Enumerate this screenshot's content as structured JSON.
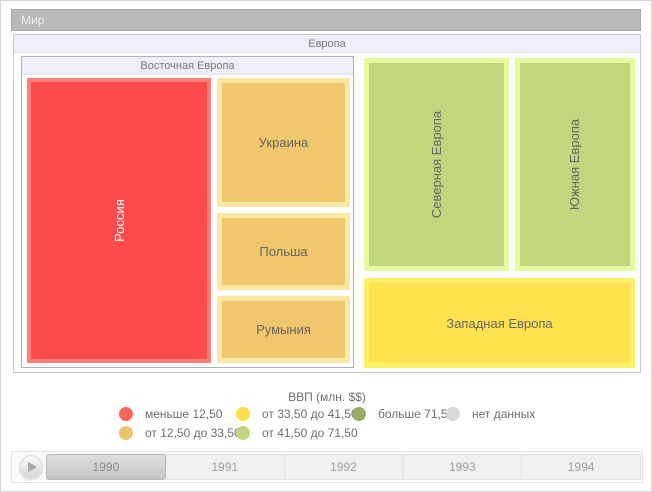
{
  "window": {
    "title": "Мир"
  },
  "treemap": {
    "root_label": "Европа",
    "eastern": {
      "label": "Восточная Европа",
      "children": [
        {
          "name": "Россия",
          "fill": "#FF4B4B",
          "border": "#FF7E78",
          "text": "#FFFFFF",
          "bin": "меньше 12,50"
        },
        {
          "name": "Украина",
          "fill": "#F0C76C",
          "border": "#FAE8A4",
          "text": "#666666",
          "bin": "от 12,50 до 33,50"
        },
        {
          "name": "Польша",
          "fill": "#F0C76C",
          "border": "#FAE8A4",
          "text": "#666666",
          "bin": "от 12,50 до 33,50"
        },
        {
          "name": "Румыния",
          "fill": "#F0C76C",
          "border": "#FAE8A4",
          "text": "#666666",
          "bin": "от 12,50 до 33,50"
        }
      ]
    },
    "regions": [
      {
        "name": "Северная Европа",
        "fill": "#C2D77D",
        "border": "#E6FA9E",
        "text": "#666666",
        "bin": "от 41,50 до 71,50"
      },
      {
        "name": "Южная Европа",
        "fill": "#C2D77D",
        "border": "#E6FA9E",
        "text": "#666666",
        "bin": "от 41,50 до 71,50"
      },
      {
        "name": "Западная Европа",
        "fill": "#FFE24D",
        "border": "#FBF167",
        "text": "#666666",
        "bin": "от 33,50 до 41,50"
      }
    ]
  },
  "legend": {
    "title": "ВВП (млн. $$)",
    "items": [
      {
        "label": "меньше 12,50",
        "color": "#F9675C"
      },
      {
        "label": "от 12,50 до 33,50",
        "color": "#EFC46F"
      },
      {
        "label": "от 33,50 до 41,50",
        "color": "#FCE14B"
      },
      {
        "label": "от 41,50 до 71,50",
        "color": "#C0D57E"
      },
      {
        "label": "больше 71,50",
        "color": "#9AAE63"
      },
      {
        "label": "нет данных",
        "color": "#D8D8D8"
      }
    ]
  },
  "timeline": {
    "years": [
      "1990",
      "1991",
      "1992",
      "1993",
      "1994"
    ],
    "selected": "1990"
  },
  "chart_data": {
    "type": "treemap",
    "title": "Мир",
    "group": "Европа",
    "measure": "ВВП (млн. $$)",
    "year_shown": "1990",
    "years": [
      "1990",
      "1991",
      "1992",
      "1993",
      "1994"
    ],
    "bins": [
      {
        "label": "меньше 12,50",
        "color": "#F9675C"
      },
      {
        "label": "от 12,50 до 33,50",
        "color": "#EFC46F"
      },
      {
        "label": "от 33,50 до 41,50",
        "color": "#FCE14B"
      },
      {
        "label": "от 41,50 до 71,50",
        "color": "#C0D57E"
      },
      {
        "label": "больше 71,50",
        "color": "#9AAE63"
      },
      {
        "label": "нет данных",
        "color": "#D8D8D8"
      }
    ],
    "nodes": [
      {
        "path": "Европа / Восточная Европа / Россия",
        "bin": "меньше 12,50",
        "area_share_pct": 31
      },
      {
        "path": "Европа / Восточная Европа / Украина",
        "bin": "от 12,50 до 33,50",
        "area_share_pct": 10
      },
      {
        "path": "Европа / Восточная Европа / Польша",
        "bin": "от 12,50 до 33,50",
        "area_share_pct": 6
      },
      {
        "path": "Европа / Восточная Европа / Румыния",
        "bin": "от 12,50 до 33,50",
        "area_share_pct": 5
      },
      {
        "path": "Европа / Северная Европа",
        "bin": "от 41,50 до 71,50",
        "area_share_pct": 18
      },
      {
        "path": "Европа / Южная Европа",
        "bin": "от 41,50 до 71,50",
        "area_share_pct": 15
      },
      {
        "path": "Европа / Западная Европа",
        "bin": "от 33,50 до 41,50",
        "area_share_pct": 15
      }
    ]
  }
}
